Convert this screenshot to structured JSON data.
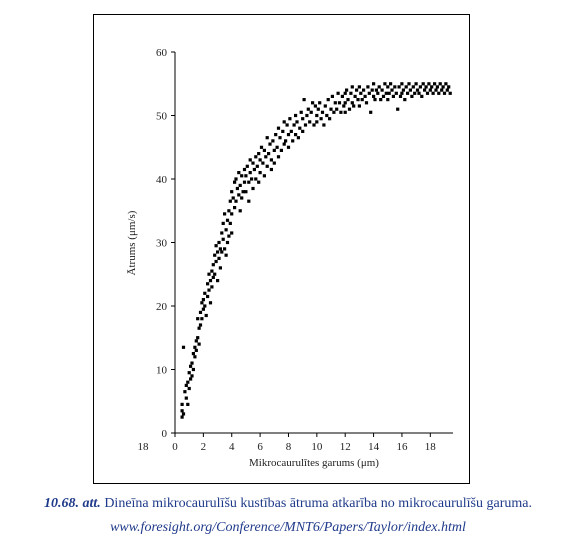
{
  "caption": {
    "figure_number": "10.68. att.",
    "text": "Dineīna mikrocaurulīšu kustības ātruma atkarība no mikrocaurulīšu garuma.",
    "url": "www.foresight.org/Conference/MNT6/Papers/Taylor/index.html",
    "color": "#1f3a8a"
  },
  "chart_data": {
    "type": "scatter",
    "title": "",
    "xlabel": "Mikrocaurulītes garums (μm)",
    "ylabel": "Ātrums (μm/s)",
    "xlim": [
      0,
      19.6
    ],
    "ylim": [
      0,
      60
    ],
    "x_ticks": [
      0,
      2,
      4,
      6,
      8,
      10,
      12,
      14,
      16,
      18
    ],
    "x_tick_labels": [
      "0",
      "2",
      "4",
      "6",
      "8",
      "10",
      "12",
      "14",
      "16",
      "18"
    ],
    "x_extra_label": "18",
    "y_ticks": [
      0,
      10,
      20,
      30,
      40,
      50,
      60
    ],
    "y_tick_labels": [
      "0",
      "10",
      "20",
      "30",
      "40",
      "50",
      "60"
    ],
    "grid": false,
    "legend": "none",
    "marker_color": "#000000",
    "series": [
      {
        "points": [
          [
            0.5,
            2.5
          ],
          [
            0.5,
            3.5
          ],
          [
            0.5,
            4.5
          ],
          [
            0.6,
            3.0
          ],
          [
            0.6,
            13.5
          ],
          [
            0.7,
            6.5
          ],
          [
            0.8,
            7.5
          ],
          [
            0.8,
            5.5
          ],
          [
            0.9,
            8.0
          ],
          [
            0.9,
            4.5
          ],
          [
            1.0,
            9.5
          ],
          [
            1.0,
            7.0
          ],
          [
            1.1,
            10.5
          ],
          [
            1.1,
            8.5
          ],
          [
            1.2,
            11.0
          ],
          [
            1.2,
            9.0
          ],
          [
            1.3,
            12.5
          ],
          [
            1.3,
            10.0
          ],
          [
            1.4,
            13.5
          ],
          [
            1.4,
            12.0
          ],
          [
            1.5,
            14.5
          ],
          [
            1.5,
            13.0
          ],
          [
            1.6,
            15.0
          ],
          [
            1.6,
            18.0
          ],
          [
            1.7,
            16.5
          ],
          [
            1.7,
            14.0
          ],
          [
            1.8,
            19.0
          ],
          [
            1.8,
            17.0
          ],
          [
            1.9,
            20.5
          ],
          [
            1.9,
            18.0
          ],
          [
            2.0,
            21.0
          ],
          [
            2.0,
            19.5
          ],
          [
            2.1,
            22.0
          ],
          [
            2.1,
            20.0
          ],
          [
            2.2,
            18.5
          ],
          [
            2.3,
            23.5
          ],
          [
            2.3,
            21.5
          ],
          [
            2.4,
            22.5
          ],
          [
            2.4,
            25.0
          ],
          [
            2.5,
            24.0
          ],
          [
            2.5,
            20.5
          ],
          [
            2.6,
            25.5
          ],
          [
            2.6,
            23.0
          ],
          [
            2.7,
            26.5
          ],
          [
            2.7,
            24.5
          ],
          [
            2.8,
            28.0
          ],
          [
            2.8,
            25.0
          ],
          [
            2.9,
            29.5
          ],
          [
            2.9,
            27.0
          ],
          [
            3.0,
            28.5
          ],
          [
            3.0,
            24.0
          ],
          [
            3.1,
            30.0
          ],
          [
            3.1,
            27.5
          ],
          [
            3.2,
            29.0
          ],
          [
            3.2,
            26.0
          ],
          [
            3.3,
            31.5
          ],
          [
            3.3,
            28.5
          ],
          [
            3.4,
            33.0
          ],
          [
            3.4,
            30.5
          ],
          [
            3.5,
            34.5
          ],
          [
            3.5,
            29.0
          ],
          [
            3.6,
            32.0
          ],
          [
            3.6,
            28.0
          ],
          [
            3.7,
            33.5
          ],
          [
            3.7,
            30.0
          ],
          [
            3.8,
            35.0
          ],
          [
            3.8,
            31.0
          ],
          [
            3.9,
            36.5
          ],
          [
            3.9,
            33.0
          ],
          [
            4.0,
            38.0
          ],
          [
            4.0,
            34.5
          ],
          [
            4.0,
            31.5
          ],
          [
            4.1,
            37.0
          ],
          [
            4.2,
            39.5
          ],
          [
            4.2,
            35.5
          ],
          [
            4.3,
            40.0
          ],
          [
            4.3,
            36.5
          ],
          [
            4.4,
            38.5
          ],
          [
            4.5,
            41.0
          ],
          [
            4.5,
            37.5
          ],
          [
            4.6,
            39.0
          ],
          [
            4.6,
            35.0
          ],
          [
            4.7,
            40.5
          ],
          [
            4.7,
            37.0
          ],
          [
            4.8,
            38.0
          ],
          [
            4.9,
            41.5
          ],
          [
            4.9,
            39.5
          ],
          [
            5.0,
            40.5
          ],
          [
            5.0,
            38.0
          ],
          [
            5.1,
            42.0
          ],
          [
            5.2,
            39.5
          ],
          [
            5.2,
            36.5
          ],
          [
            5.3,
            41.0
          ],
          [
            5.3,
            43.0
          ],
          [
            5.4,
            40.0
          ],
          [
            5.5,
            42.5
          ],
          [
            5.5,
            38.5
          ],
          [
            5.6,
            41.5
          ],
          [
            5.7,
            43.5
          ],
          [
            5.7,
            40.0
          ],
          [
            5.8,
            42.0
          ],
          [
            5.9,
            44.0
          ],
          [
            5.9,
            39.5
          ],
          [
            6.0,
            43.0
          ],
          [
            6.0,
            41.0
          ],
          [
            6.1,
            45.0
          ],
          [
            6.2,
            42.5
          ],
          [
            6.3,
            44.5
          ],
          [
            6.3,
            40.5
          ],
          [
            6.4,
            43.5
          ],
          [
            6.5,
            46.5
          ],
          [
            6.5,
            42.0
          ],
          [
            6.6,
            44.0
          ],
          [
            6.7,
            45.5
          ],
          [
            6.8,
            43.0
          ],
          [
            6.8,
            41.5
          ],
          [
            6.9,
            46.0
          ],
          [
            7.0,
            44.5
          ],
          [
            7.0,
            42.5
          ],
          [
            7.1,
            47.0
          ],
          [
            7.2,
            45.0
          ],
          [
            7.3,
            48.0
          ],
          [
            7.3,
            43.5
          ],
          [
            7.4,
            46.5
          ],
          [
            7.5,
            44.5
          ],
          [
            7.6,
            47.5
          ],
          [
            7.7,
            49.0
          ],
          [
            7.7,
            45.5
          ],
          [
            7.8,
            46.0
          ],
          [
            7.9,
            48.5
          ],
          [
            8.0,
            47.0
          ],
          [
            8.0,
            45.0
          ],
          [
            8.1,
            49.5
          ],
          [
            8.2,
            47.5
          ],
          [
            8.3,
            46.0
          ],
          [
            8.4,
            48.5
          ],
          [
            8.5,
            50.0
          ],
          [
            8.5,
            47.0
          ],
          [
            8.6,
            49.0
          ],
          [
            8.7,
            46.5
          ],
          [
            8.8,
            48.0
          ],
          [
            8.9,
            50.5
          ],
          [
            9.0,
            49.5
          ],
          [
            9.0,
            47.5
          ],
          [
            9.1,
            52.5
          ],
          [
            9.2,
            48.5
          ],
          [
            9.3,
            50.0
          ],
          [
            9.4,
            51.0
          ],
          [
            9.5,
            49.0
          ],
          [
            9.6,
            50.5
          ],
          [
            9.7,
            52.0
          ],
          [
            9.8,
            48.5
          ],
          [
            9.9,
            51.5
          ],
          [
            10.0,
            50.0
          ],
          [
            10.0,
            49.0
          ],
          [
            10.1,
            51.0
          ],
          [
            10.2,
            52.0
          ],
          [
            10.3,
            49.5
          ],
          [
            10.4,
            50.5
          ],
          [
            10.5,
            48.5
          ],
          [
            10.6,
            51.5
          ],
          [
            10.7,
            50.0
          ],
          [
            10.8,
            52.5
          ],
          [
            10.9,
            49.5
          ],
          [
            11.0,
            51.0
          ],
          [
            11.1,
            53.0
          ],
          [
            11.2,
            50.5
          ],
          [
            11.3,
            52.0
          ],
          [
            11.4,
            51.0
          ],
          [
            11.5,
            53.5
          ],
          [
            11.6,
            52.0
          ],
          [
            11.7,
            50.5
          ],
          [
            11.8,
            53.0
          ],
          [
            11.9,
            51.5
          ],
          [
            12.0,
            53.5
          ],
          [
            12.0,
            52.0
          ],
          [
            12.0,
            50.5
          ],
          [
            12.1,
            54.0
          ],
          [
            12.2,
            52.5
          ],
          [
            12.3,
            51.0
          ],
          [
            12.4,
            53.5
          ],
          [
            12.5,
            52.0
          ],
          [
            12.5,
            54.5
          ],
          [
            12.6,
            51.5
          ],
          [
            12.7,
            53.0
          ],
          [
            12.8,
            54.0
          ],
          [
            12.9,
            52.5
          ],
          [
            13.0,
            54.5
          ],
          [
            13.0,
            51.5
          ],
          [
            13.1,
            53.5
          ],
          [
            13.2,
            52.5
          ],
          [
            13.3,
            54.0
          ],
          [
            13.4,
            53.0
          ],
          [
            13.5,
            52.0
          ],
          [
            13.6,
            54.5
          ],
          [
            13.7,
            53.5
          ],
          [
            13.8,
            50.5
          ],
          [
            13.9,
            54.0
          ],
          [
            14.0,
            53.0
          ],
          [
            14.0,
            55.0
          ],
          [
            14.1,
            52.5
          ],
          [
            14.2,
            54.0
          ],
          [
            14.3,
            53.5
          ],
          [
            14.4,
            54.5
          ],
          [
            14.5,
            52.5
          ],
          [
            14.6,
            54.0
          ],
          [
            14.7,
            53.0
          ],
          [
            14.8,
            55.0
          ],
          [
            14.9,
            53.5
          ],
          [
            15.0,
            54.5
          ],
          [
            15.0,
            52.5
          ],
          [
            15.1,
            53.5
          ],
          [
            15.2,
            55.0
          ],
          [
            15.3,
            54.0
          ],
          [
            15.4,
            53.0
          ],
          [
            15.5,
            54.5
          ],
          [
            15.6,
            53.5
          ],
          [
            15.7,
            51.0
          ],
          [
            15.8,
            54.5
          ],
          [
            15.9,
            53.0
          ],
          [
            16.0,
            55.0
          ],
          [
            16.0,
            53.5
          ],
          [
            16.1,
            54.0
          ],
          [
            16.2,
            52.5
          ],
          [
            16.3,
            54.5
          ],
          [
            16.4,
            53.5
          ],
          [
            16.5,
            55.0
          ],
          [
            16.6,
            54.0
          ],
          [
            16.7,
            53.0
          ],
          [
            16.8,
            54.5
          ],
          [
            16.9,
            53.5
          ],
          [
            17.0,
            55.0
          ],
          [
            17.1,
            54.0
          ],
          [
            17.2,
            53.5
          ],
          [
            17.3,
            54.5
          ],
          [
            17.4,
            53.0
          ],
          [
            17.5,
            55.0
          ],
          [
            17.6,
            54.0
          ],
          [
            17.7,
            54.5
          ],
          [
            17.8,
            53.5
          ],
          [
            17.9,
            55.0
          ],
          [
            18.0,
            54.0
          ],
          [
            18.1,
            54.5
          ],
          [
            18.2,
            53.5
          ],
          [
            18.3,
            55.0
          ],
          [
            18.4,
            54.0
          ],
          [
            18.5,
            54.5
          ],
          [
            18.6,
            53.5
          ],
          [
            18.7,
            55.0
          ],
          [
            18.8,
            54.0
          ],
          [
            18.9,
            54.5
          ],
          [
            19.0,
            53.5
          ],
          [
            19.1,
            55.0
          ],
          [
            19.2,
            54.0
          ],
          [
            19.3,
            54.5
          ],
          [
            19.4,
            53.5
          ]
        ]
      }
    ]
  }
}
